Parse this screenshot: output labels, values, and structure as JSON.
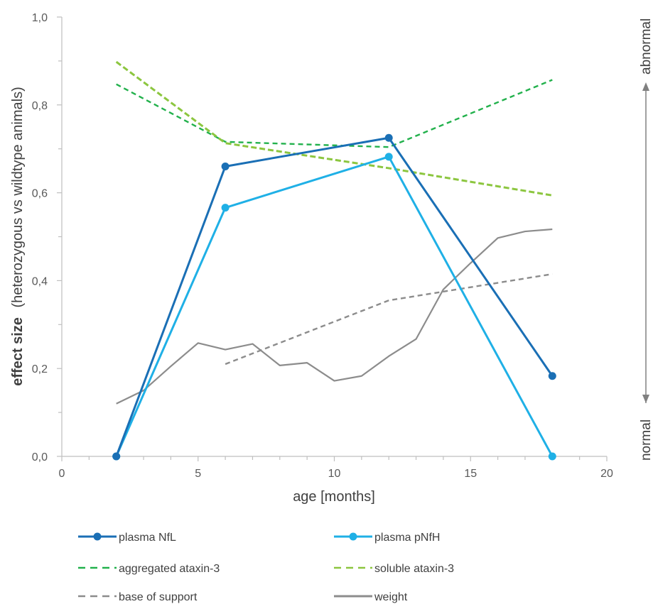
{
  "chart_data": {
    "type": "line",
    "xlabel": "age [months]",
    "ylabel": {
      "bold": "effect size",
      "normal": "(heterozygous vs wildtype animals)"
    },
    "xlim": [
      0,
      20
    ],
    "ylim": [
      0,
      1
    ],
    "x_ticks": [
      0,
      5,
      10,
      15,
      20
    ],
    "x_tick_labels": [
      "0",
      "5",
      "10",
      "15",
      "20"
    ],
    "y_ticks": [
      0,
      0.2,
      0.4,
      0.6,
      0.8,
      1.0
    ],
    "y_tick_labels": [
      "0,0",
      "0,2",
      "0,4",
      "0,6",
      "0,8",
      "1,0"
    ],
    "grid": false,
    "legend_position": "bottom",
    "side_labels": {
      "top": "abnormal",
      "bottom": "normal"
    },
    "series": [
      {
        "name": "plasma NfL",
        "color": "#1a6fb5",
        "dash": "solid",
        "markers": true,
        "x": [
          2,
          6,
          12,
          18
        ],
        "y": [
          0.0,
          0.66,
          0.725,
          0.183
        ]
      },
      {
        "name": "plasma pNfH",
        "color": "#1fb0e6",
        "dash": "solid",
        "markers": true,
        "x": [
          2,
          6,
          12,
          18
        ],
        "y": [
          0.0,
          0.566,
          0.682,
          0.0
        ]
      },
      {
        "name": "aggregated ataxin-3",
        "color": "#22b14c",
        "dash": "dashed",
        "markers": false,
        "x": [
          2,
          6,
          12,
          18
        ],
        "y": [
          0.847,
          0.716,
          0.704,
          0.857
        ]
      },
      {
        "name": "soluble ataxin-3",
        "color": "#8cc63f",
        "dash": "dashed",
        "markers": false,
        "x": [
          2,
          6,
          12,
          18
        ],
        "y": [
          0.898,
          0.713,
          0.656,
          0.594
        ]
      },
      {
        "name": "base of support",
        "color": "#8c8c8c",
        "dash": "dashed",
        "markers": false,
        "x": [
          6,
          12,
          18
        ],
        "y": [
          0.21,
          0.355,
          0.415
        ]
      },
      {
        "name": "weight",
        "color": "#8c8c8c",
        "dash": "solid",
        "markers": false,
        "x": [
          2,
          3,
          4,
          5,
          6,
          7,
          8,
          9,
          10,
          11,
          12,
          13,
          14,
          15,
          16,
          17,
          18
        ],
        "y": [
          0.12,
          0.15,
          0.205,
          0.258,
          0.243,
          0.256,
          0.207,
          0.213,
          0.172,
          0.183,
          0.228,
          0.267,
          0.38,
          0.44,
          0.497,
          0.512,
          0.517
        ]
      }
    ]
  }
}
